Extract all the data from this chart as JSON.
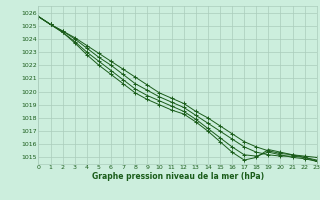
{
  "title": "Graphe pression niveau de la mer (hPa)",
  "bg_color": "#cceedd",
  "grid_color": "#aaccbb",
  "line_color": "#1a5c1a",
  "x_min": 0,
  "x_max": 23,
  "y_min": 1014.5,
  "y_max": 1026.5,
  "y_ticks": [
    1015,
    1016,
    1017,
    1018,
    1019,
    1020,
    1021,
    1022,
    1023,
    1024,
    1025,
    1026
  ],
  "series": [
    [
      1025.7,
      1025.1,
      1024.6,
      1024.1,
      1023.5,
      1022.9,
      1022.3,
      1021.7,
      1021.1,
      1020.5,
      1019.9,
      1019.5,
      1019.1,
      1018.5,
      1018.0,
      1017.4,
      1016.8,
      1016.2,
      1015.8,
      1015.5,
      1015.3,
      1015.2,
      1015.1,
      1015.0
    ],
    [
      1025.7,
      1025.1,
      1024.6,
      1024.0,
      1023.3,
      1022.6,
      1022.0,
      1021.3,
      1020.6,
      1020.1,
      1019.6,
      1019.2,
      1018.8,
      1018.2,
      1017.6,
      1017.0,
      1016.4,
      1015.8,
      1015.4,
      1015.2,
      1015.1,
      1015.1,
      1015.0,
      1014.8
    ],
    [
      1025.7,
      1025.1,
      1024.5,
      1023.8,
      1023.0,
      1022.3,
      1021.6,
      1020.9,
      1020.2,
      1019.7,
      1019.3,
      1018.9,
      1018.5,
      1017.9,
      1017.2,
      1016.5,
      1015.8,
      1015.2,
      1015.1,
      1015.4,
      1015.2,
      1015.0,
      1014.9,
      1014.7
    ],
    [
      1025.7,
      1025.1,
      1024.5,
      1023.7,
      1022.8,
      1022.0,
      1021.3,
      1020.6,
      1019.9,
      1019.4,
      1019.0,
      1018.6,
      1018.3,
      1017.7,
      1017.0,
      1016.2,
      1015.4,
      1014.8,
      1015.0,
      1015.6,
      1015.4,
      1015.2,
      1015.0,
      1014.7
    ]
  ]
}
